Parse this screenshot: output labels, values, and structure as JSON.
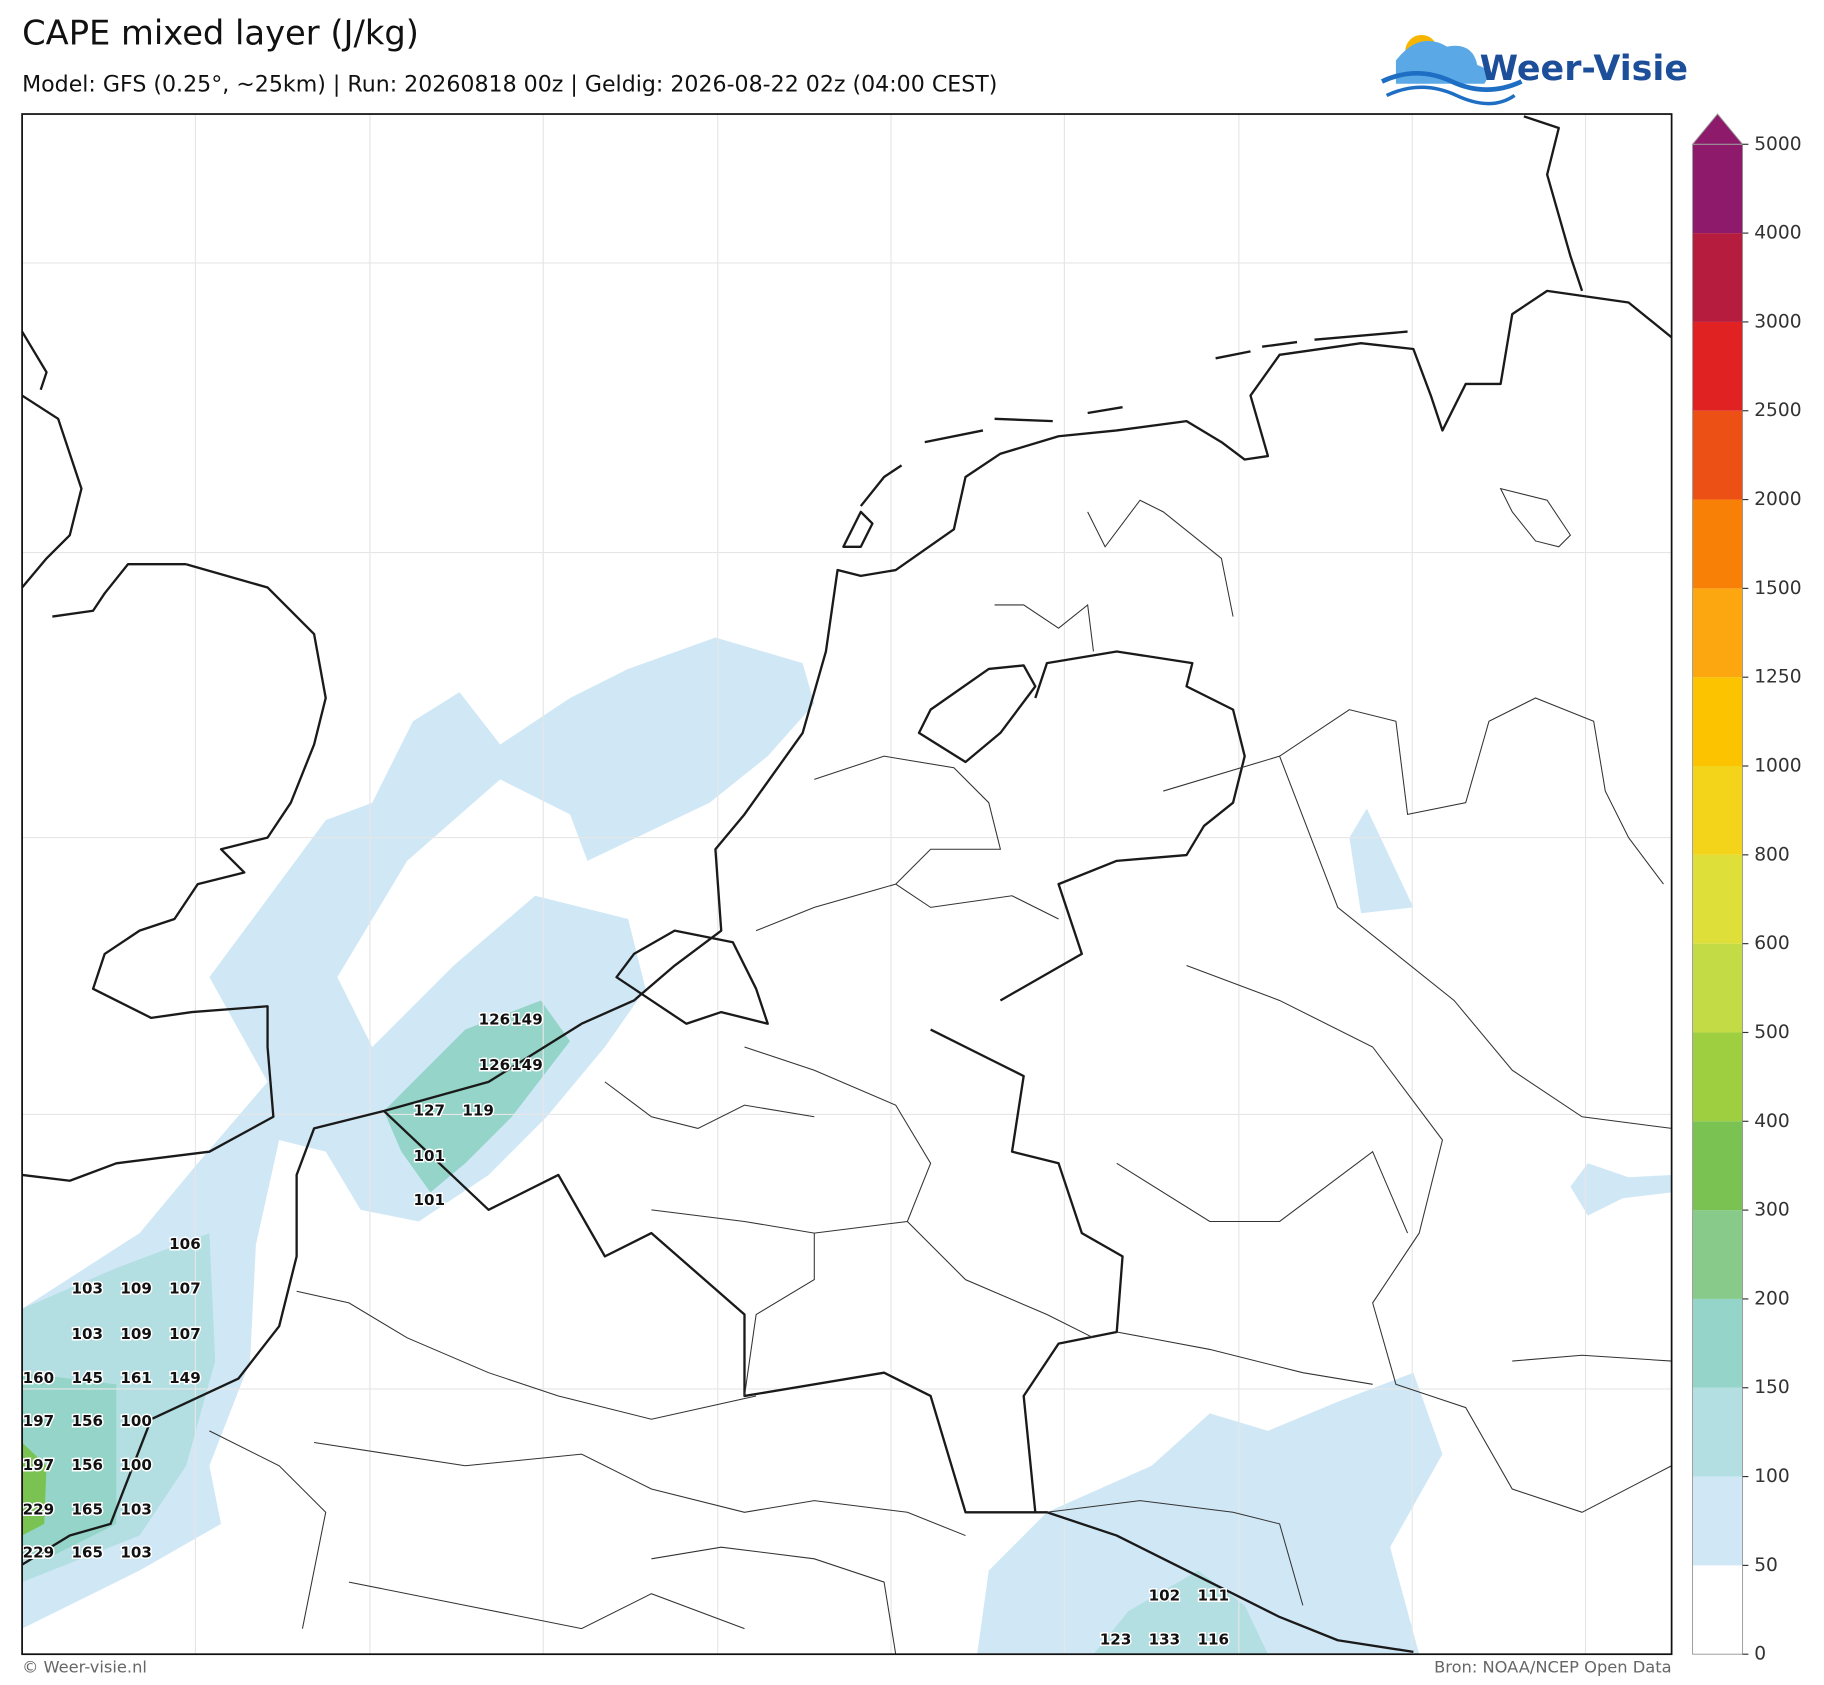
{
  "header": {
    "title": "CAPE mixed layer (J/kg)",
    "subtitle": "Model: GFS (0.25°, ~25km)  |  Run: 20260818 00z  |  Geldig: 2026-08-22 02z (04:00 CEST)",
    "logo": "Weer-Visie"
  },
  "colorbar": {
    "ticks": [
      0,
      50,
      100,
      150,
      200,
      300,
      400,
      500,
      600,
      800,
      1000,
      1250,
      1500,
      2000,
      2500,
      3000,
      4000,
      5000
    ],
    "colors": [
      "#ffffff",
      "#d0e8f6",
      "#b3dfe2",
      "#95d4c8",
      "#88ca8a",
      "#7ac353",
      "#9dcf41",
      "#c3dc46",
      "#dfdf3a",
      "#f3d41a",
      "#fcc300",
      "#fca610",
      "#f98006",
      "#ec5014",
      "#e02222",
      "#b61c3e",
      "#8d1a6b"
    ]
  },
  "map_labels": [
    126,
    149,
    126,
    149,
    127,
    119,
    101,
    101,
    106,
    103,
    109,
    107,
    103,
    109,
    107,
    160,
    145,
    161,
    149,
    197,
    156,
    100,
    197,
    156,
    100,
    229,
    165,
    103,
    229,
    165,
    103,
    102,
    111,
    123,
    133,
    116
  ],
  "footer": {
    "left": "© Weer-visie.nl",
    "right": "Bron: NOAA/NCEP Open Data"
  }
}
